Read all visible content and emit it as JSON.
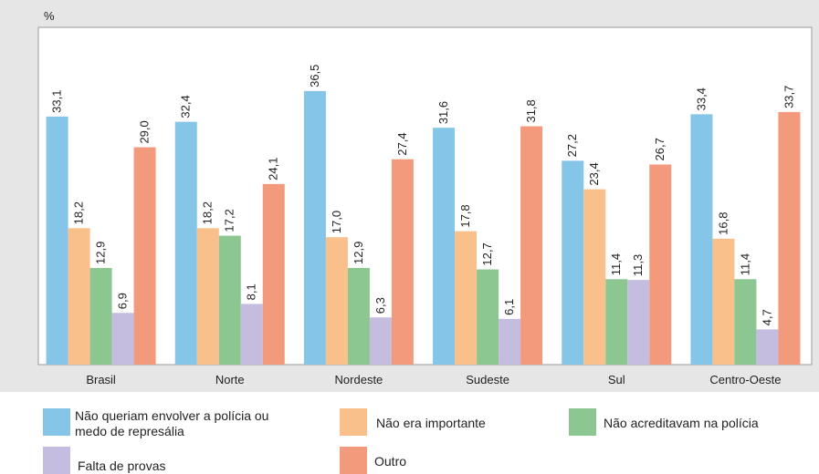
{
  "chart_data": {
    "type": "bar",
    "y_label": "%",
    "categories": [
      "Brasil",
      "Norte",
      "Nordeste",
      "Sudeste",
      "Sul",
      "Centro-Oeste"
    ],
    "ylim": [
      0,
      45
    ],
    "series": [
      {
        "name": "Não queriam envolver a polícia ou medo de represália",
        "color": "#84c5e8",
        "values": [
          33.1,
          32.4,
          36.5,
          31.6,
          27.2,
          33.4
        ],
        "value_labels": [
          "33,1",
          "32,4",
          "36,5",
          "31,6",
          "27,2",
          "33,4"
        ]
      },
      {
        "name": "Não era importante",
        "color": "#f9c08c",
        "values": [
          18.2,
          18.2,
          17.0,
          17.8,
          23.4,
          16.8
        ],
        "value_labels": [
          "18,2",
          "18,2",
          "17,0",
          "17,8",
          "23,4",
          "16,8"
        ]
      },
      {
        "name": "Não acreditavam na polícia",
        "color": "#8cc690",
        "values": [
          12.9,
          17.2,
          12.9,
          12.7,
          11.4,
          11.4
        ],
        "value_labels": [
          "12,9",
          "17,2",
          "12,9",
          "12,7",
          "11,4",
          "11,4"
        ]
      },
      {
        "name": "Falta de provas",
        "color": "#c5bde0",
        "values": [
          6.9,
          8.1,
          6.3,
          6.1,
          11.3,
          4.7
        ],
        "value_labels": [
          "6,9",
          "8,1",
          "6,3",
          "6,1",
          "11,3",
          "4,7"
        ]
      },
      {
        "name": "Outro",
        "color": "#f49a7c",
        "values": [
          29.0,
          24.1,
          27.4,
          31.8,
          26.7,
          33.7
        ],
        "value_labels": [
          "29,0",
          "24,1",
          "27,4",
          "31,8",
          "26,7",
          "33,7"
        ]
      }
    ]
  }
}
